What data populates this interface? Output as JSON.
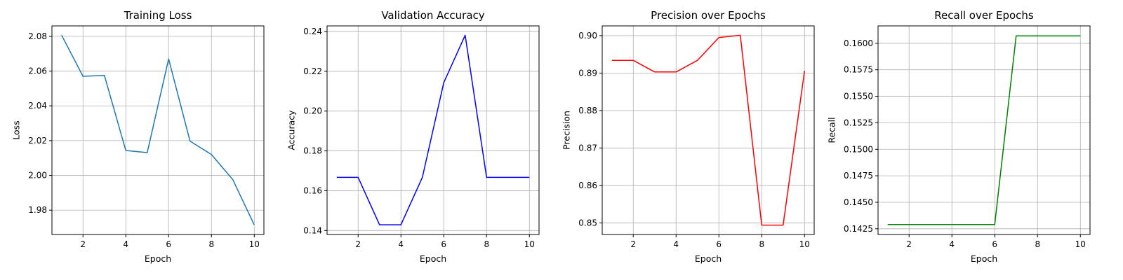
{
  "chart_data": [
    {
      "type": "line",
      "title": "Training Loss",
      "xlabel": "Epoch",
      "ylabel": "Loss",
      "x": [
        1,
        2,
        3,
        4,
        5,
        6,
        7,
        8,
        9,
        10
      ],
      "series": [
        {
          "values": [
            2.0807,
            2.057,
            2.0575,
            2.0143,
            2.0131,
            2.067,
            2.0197,
            2.012,
            1.9975,
            1.9715
          ],
          "color": "#1f77b4"
        }
      ],
      "xlim": [
        0.55,
        10.45
      ],
      "ylim": [
        1.966,
        2.086
      ],
      "xticks": [
        2,
        4,
        6,
        8,
        10
      ],
      "yticks": [
        1.98,
        2.0,
        2.02,
        2.04,
        2.06,
        2.08
      ],
      "ytick_labels": [
        "1.98",
        "2.00",
        "2.02",
        "2.04",
        "2.06",
        "2.08"
      ],
      "grid": true
    },
    {
      "type": "line",
      "title": "Validation Accuracy",
      "xlabel": "Epoch",
      "ylabel": "Accuracy",
      "x": [
        1,
        2,
        3,
        4,
        5,
        6,
        7,
        8,
        9,
        10
      ],
      "series": [
        {
          "values": [
            0.1667,
            0.1667,
            0.1429,
            0.1429,
            0.1667,
            0.2143,
            0.2381,
            0.1667,
            0.1667,
            0.1667
          ],
          "color": "#0000ff"
        }
      ],
      "xlim": [
        0.55,
        10.45
      ],
      "ylim": [
        0.138,
        0.2428
      ],
      "xticks": [
        2,
        4,
        6,
        8,
        10
      ],
      "yticks": [
        0.14,
        0.16,
        0.18,
        0.2,
        0.22,
        0.24
      ],
      "ytick_labels": [
        "0.14",
        "0.16",
        "0.18",
        "0.20",
        "0.22",
        "0.24"
      ],
      "grid": true
    },
    {
      "type": "line",
      "title": "Precision over Epochs",
      "xlabel": "Epoch",
      "ylabel": "Precision",
      "x": [
        1,
        2,
        3,
        4,
        5,
        6,
        7,
        8,
        9,
        10
      ],
      "series": [
        {
          "values": [
            0.8934,
            0.8934,
            0.8903,
            0.8903,
            0.8934,
            0.8995,
            0.9001,
            0.8494,
            0.8494,
            0.8906
          ],
          "color": "#ff0000"
        }
      ],
      "xlim": [
        0.55,
        10.45
      ],
      "ylim": [
        0.8469,
        0.9026
      ],
      "xticks": [
        2,
        4,
        6,
        8,
        10
      ],
      "yticks": [
        0.85,
        0.86,
        0.87,
        0.88,
        0.89,
        0.9
      ],
      "ytick_labels": [
        "0.85",
        "0.86",
        "0.87",
        "0.88",
        "0.89",
        "0.90"
      ],
      "grid": true
    },
    {
      "type": "line",
      "title": "Recall over Epochs",
      "xlabel": "Epoch",
      "ylabel": "Recall",
      "x": [
        1,
        2,
        3,
        4,
        5,
        6,
        7,
        8,
        9,
        10
      ],
      "series": [
        {
          "values": [
            0.1429,
            0.1429,
            0.1429,
            0.1429,
            0.1429,
            0.1429,
            0.1607,
            0.1607,
            0.1607,
            0.1607
          ],
          "color": "#008000"
        }
      ],
      "xlim": [
        0.55,
        10.45
      ],
      "ylim": [
        0.14196,
        0.16164
      ],
      "xticks": [
        2,
        4,
        6,
        8,
        10
      ],
      "yticks": [
        0.1425,
        0.145,
        0.1475,
        0.15,
        0.1525,
        0.155,
        0.1575,
        0.16
      ],
      "ytick_labels": [
        "0.1425",
        "0.1450",
        "0.1475",
        "0.1500",
        "0.1525",
        "0.1550",
        "0.1575",
        "0.1600"
      ],
      "grid": true
    }
  ]
}
